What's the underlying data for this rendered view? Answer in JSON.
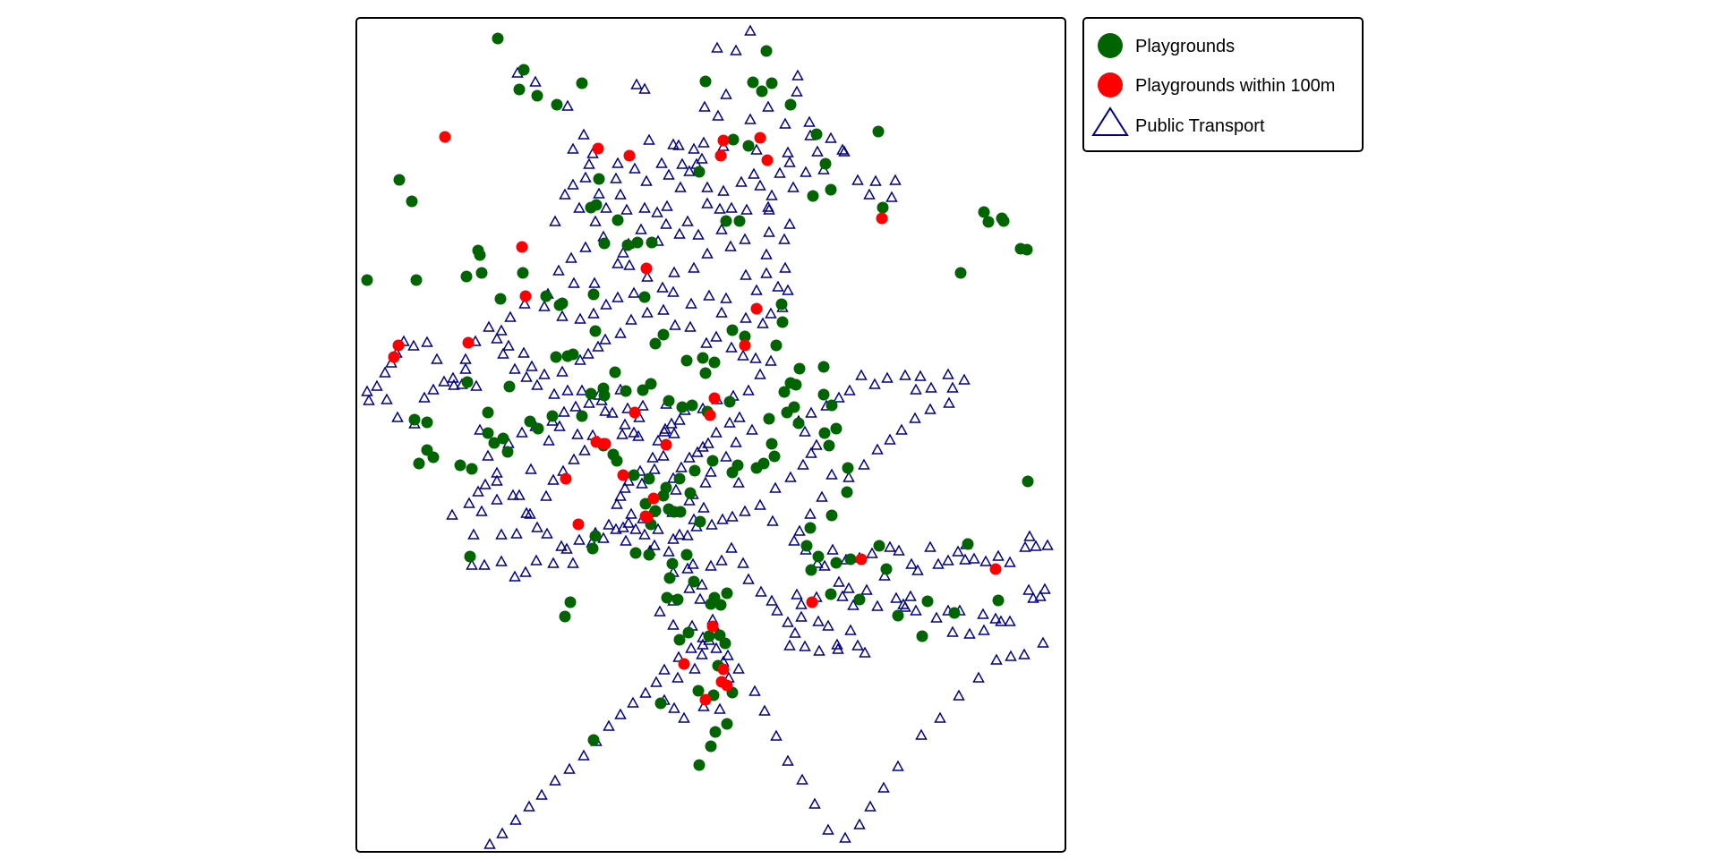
{
  "legend": {
    "items": [
      {
        "label": "Playgrounds",
        "symbol": "circle",
        "color": "#006400"
      },
      {
        "label": "Playgrounds within 100m",
        "symbol": "circle",
        "color": "#ff0000"
      },
      {
        "label": "Public Transport",
        "symbol": "triangle",
        "color": "#00008b"
      }
    ]
  },
  "colors": {
    "playground": "#006400",
    "playground_near": "#ff0000",
    "transport": "#00008b",
    "frame": "#000000"
  }
}
